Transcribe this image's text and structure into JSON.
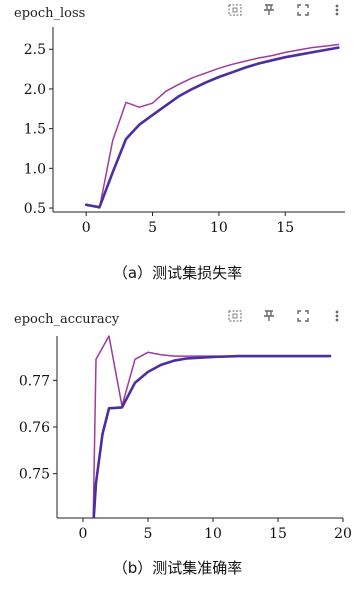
{
  "colors": {
    "thin_series": "#a03aa0",
    "thick_series": "#4b2ea0",
    "axis": "#222222",
    "icon": "#666666"
  },
  "toolbar_icons": [
    "fit-domain-icon",
    "pin-icon",
    "fullscreen-icon",
    "more-vert-icon"
  ],
  "captions": {
    "loss": "（a）测试集损失率",
    "acc": "（b）测试集准确率"
  },
  "chart_data": [
    {
      "type": "line",
      "title": "epoch_loss",
      "xlabel": "",
      "ylabel": "",
      "xlim": [
        -2.5,
        19.5
      ],
      "ylim": [
        0.45,
        2.78
      ],
      "xticks": [
        0,
        5,
        10,
        15
      ],
      "yticks": [
        0.5,
        1.0,
        1.5,
        2.0,
        2.5
      ],
      "grid": false,
      "series": [
        {
          "style": "thin",
          "x": [
            0,
            1,
            2,
            3,
            4,
            5,
            6,
            7,
            8,
            9,
            10,
            11,
            12,
            13,
            14,
            15,
            16,
            17,
            18,
            19
          ],
          "y": [
            0.55,
            0.5,
            1.35,
            1.83,
            1.77,
            1.82,
            1.97,
            2.06,
            2.14,
            2.2,
            2.26,
            2.31,
            2.35,
            2.39,
            2.42,
            2.46,
            2.49,
            2.52,
            2.54,
            2.56
          ]
        },
        {
          "style": "thick",
          "x": [
            0,
            1,
            2,
            3,
            4,
            5,
            6,
            7,
            8,
            9,
            10,
            11,
            12,
            13,
            14,
            15,
            16,
            17,
            18,
            19
          ],
          "y": [
            0.54,
            0.51,
            0.95,
            1.37,
            1.55,
            1.67,
            1.79,
            1.91,
            2.0,
            2.08,
            2.15,
            2.21,
            2.27,
            2.32,
            2.36,
            2.4,
            2.43,
            2.46,
            2.49,
            2.52
          ]
        }
      ]
    },
    {
      "type": "line",
      "title": "epoch_accuracy",
      "xlabel": "",
      "ylabel": "",
      "xlim": [
        -2.0,
        20.0
      ],
      "ylim": [
        0.7405,
        0.7795
      ],
      "xticks": [
        0,
        5,
        10,
        15,
        20
      ],
      "yticks": [
        0.75,
        0.76,
        0.77
      ],
      "grid": false,
      "series": [
        {
          "style": "thin",
          "x": [
            0.75,
            1.0,
            2.0,
            3.0,
            4.0,
            5.0,
            6.0,
            7.0,
            8.0,
            10.0,
            12.0,
            15.0,
            19.0
          ],
          "y": [
            0.735,
            0.7745,
            0.7795,
            0.7645,
            0.7745,
            0.776,
            0.7755,
            0.7752,
            0.7752,
            0.7752,
            0.7752,
            0.7752,
            0.7752
          ]
        },
        {
          "style": "thick",
          "x": [
            0.7,
            1.0,
            1.5,
            2.0,
            3.0,
            4.0,
            5.0,
            6.0,
            7.0,
            8.0,
            10.0,
            12.0,
            15.0,
            19.0
          ],
          "y": [
            0.735,
            0.748,
            0.7585,
            0.764,
            0.7642,
            0.7695,
            0.7718,
            0.7733,
            0.7742,
            0.7747,
            0.775,
            0.7752,
            0.7752,
            0.7752
          ]
        }
      ]
    }
  ]
}
